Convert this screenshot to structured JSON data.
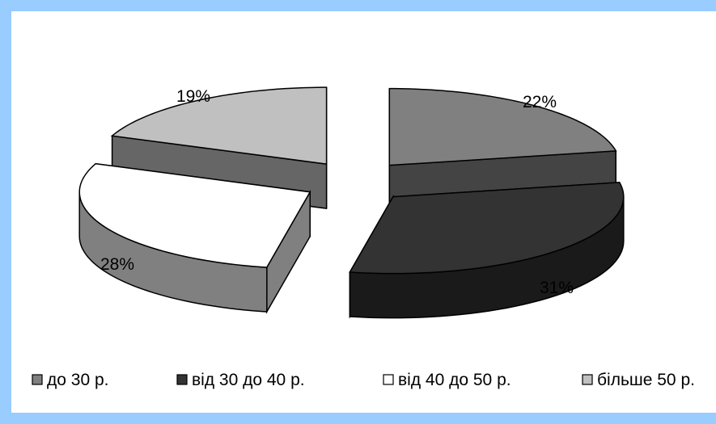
{
  "chart_data": {
    "type": "pie",
    "categories": [
      "до 30 р.",
      "від 30 до 40 р.",
      "від 40 до 50 р.",
      "більше 50 р."
    ],
    "values": [
      22,
      31,
      28,
      19
    ],
    "data_labels": [
      "22%",
      "31%",
      "28%",
      "19%"
    ],
    "colors": {
      "top": [
        "#808080",
        "#333333",
        "#ffffff",
        "#c0c0c0"
      ],
      "side": [
        "#444444",
        "#1a1a1a",
        "#808080",
        "#666666"
      ]
    },
    "legend_position": "bottom",
    "exploded": true,
    "three_d": true
  },
  "colors": {
    "frame": "#99ccff",
    "background": "#ffffff"
  }
}
